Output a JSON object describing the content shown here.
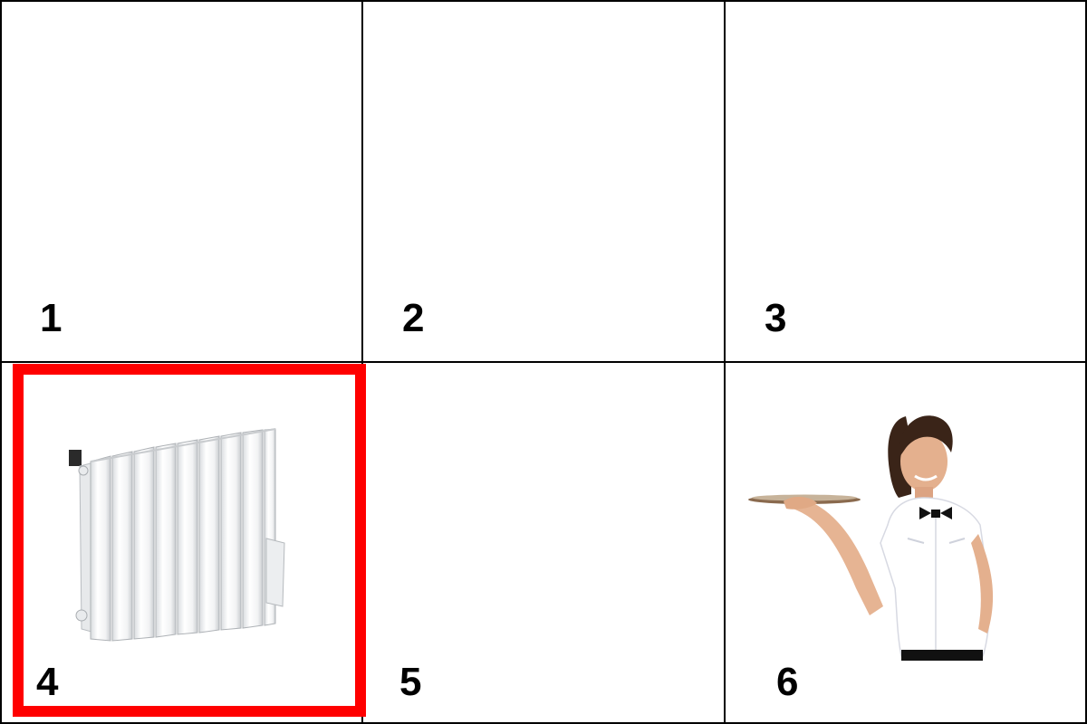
{
  "grid": {
    "selected_index": 4,
    "selection_color": "#ff0000",
    "cells": [
      {
        "number": "1",
        "content": ""
      },
      {
        "number": "2",
        "content": ""
      },
      {
        "number": "3",
        "content": ""
      },
      {
        "number": "4",
        "content": "radiator-icon"
      },
      {
        "number": "5",
        "content": ""
      },
      {
        "number": "6",
        "content": "waitress-with-tray-icon"
      }
    ]
  }
}
